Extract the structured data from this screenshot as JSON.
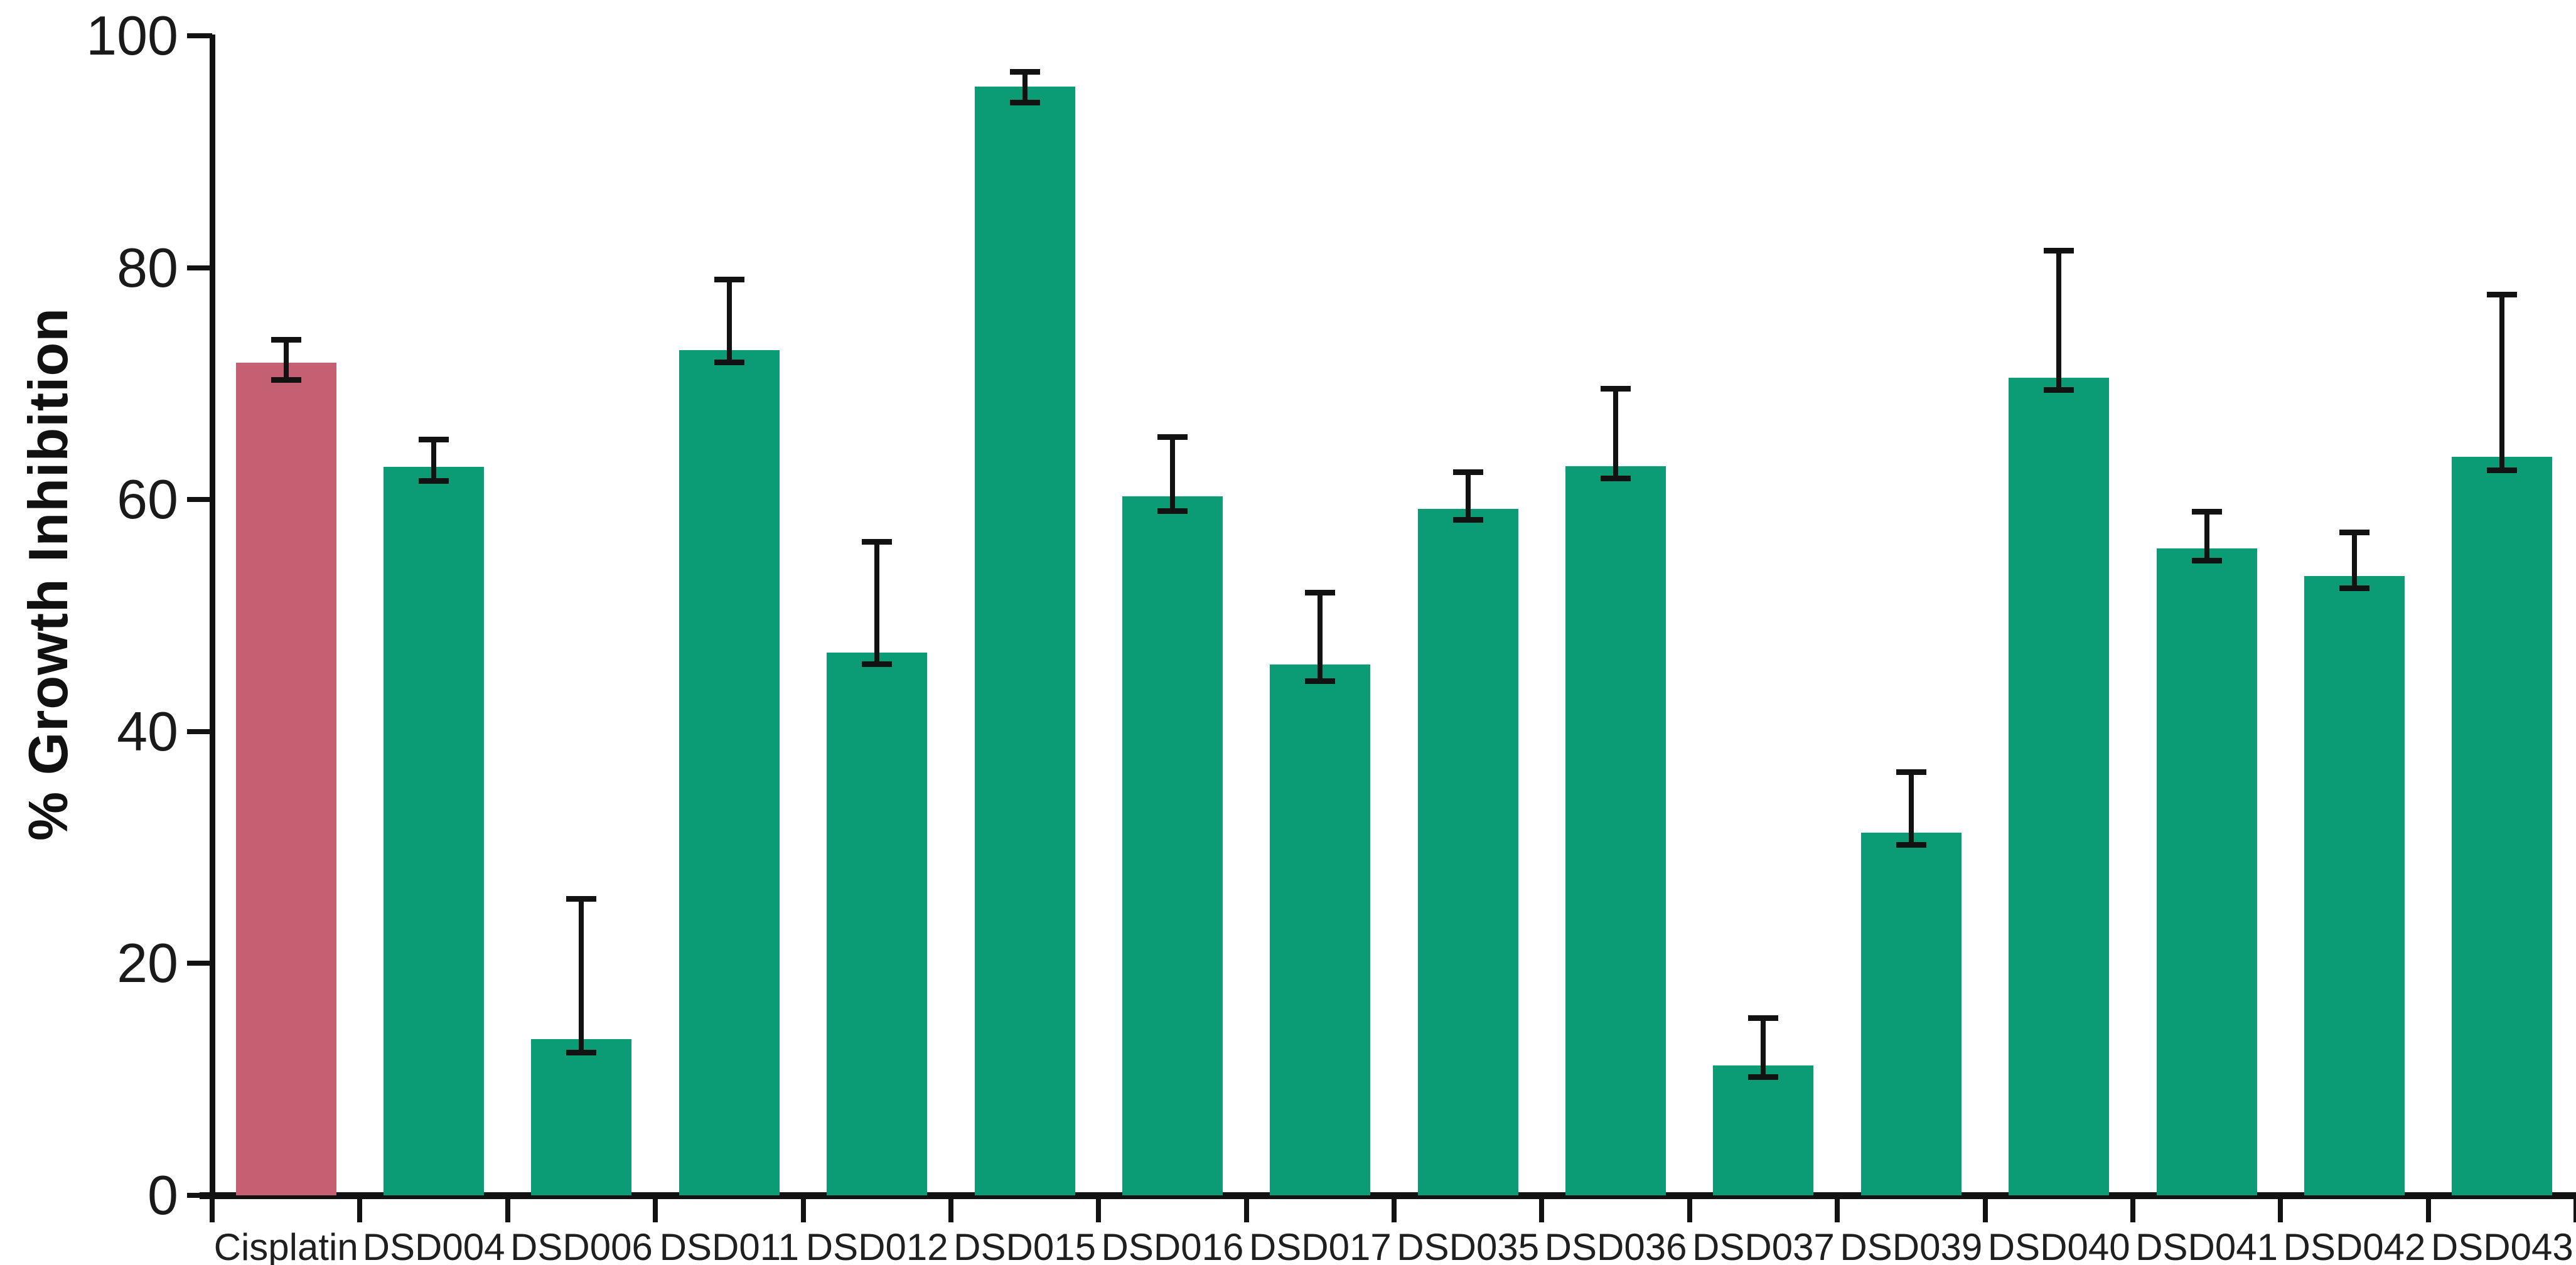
{
  "chart_data": {
    "type": "bar",
    "title": "",
    "ylabel": "% Growth Inhibition",
    "xlabel": "",
    "ylim": [
      0,
      100
    ],
    "yticks": [
      0,
      20,
      40,
      60,
      80,
      100
    ],
    "grid": false,
    "legend": false,
    "highlight_category": "Cisplatin",
    "categories": [
      "Cisplatin",
      "DSD004",
      "DSD006",
      "DSD011",
      "DSD012",
      "DSD015",
      "DSD016",
      "DSD017",
      "DSD035",
      "DSD036",
      "DSD037",
      "DSD039",
      "DSD040",
      "DSD041",
      "DSD042",
      "DSD043"
    ],
    "series": [
      {
        "name": "% Growth Inhibition",
        "values": [
          71.8,
          62.8,
          13.5,
          72.9,
          46.8,
          95.6,
          60.3,
          45.8,
          59.2,
          62.9,
          11.2,
          31.3,
          70.5,
          55.8,
          53.4,
          63.7
        ],
        "error_up": [
          2.0,
          2.4,
          12.1,
          6.1,
          9.6,
          1.3,
          5.1,
          6.2,
          3.2,
          6.7,
          4.1,
          5.2,
          11.0,
          3.2,
          3.8,
          14.0
        ],
        "error_down": [
          1.5,
          1.2,
          1.2,
          1.1,
          1.0,
          1.4,
          1.3,
          1.5,
          1.0,
          1.1,
          1.0,
          1.1,
          1.1,
          1.1,
          1.1,
          1.2
        ]
      }
    ],
    "colors": {
      "bar_default": "#0b9c76",
      "bar_highlight": "#c55f72",
      "error_bar": "#121212",
      "axis": "#121212",
      "text": "#1a1a1a"
    }
  }
}
